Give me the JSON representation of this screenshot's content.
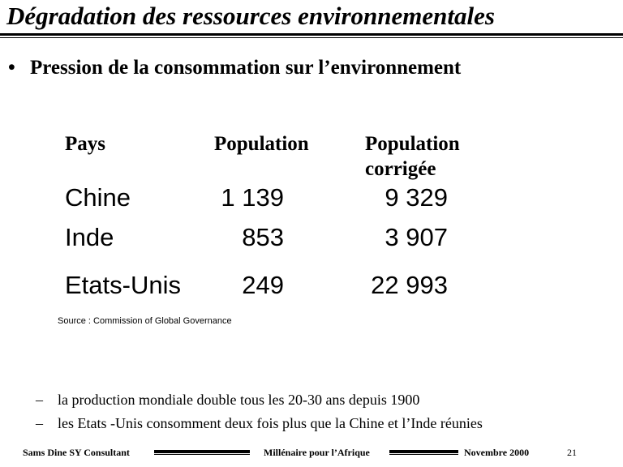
{
  "title": "Dégradation des ressources environnementales",
  "bullet": {
    "marker": "•",
    "text": "Pression de la consommation sur l’environnement"
  },
  "table": {
    "headers": [
      "Pays",
      "Population",
      "Population corrigée"
    ],
    "header3_line1": "Population",
    "header3_line2": "corrigée",
    "rows": [
      {
        "pays": "Chine",
        "population": "1 139",
        "corrigee": "9 329"
      },
      {
        "pays": "Inde",
        "population": "853",
        "corrigee": "3 907"
      },
      {
        "pays": "Etats-Unis",
        "population": "249",
        "corrigee": "22 993"
      }
    ]
  },
  "source": "Source : Commission of Global Governance",
  "subpoints": [
    {
      "marker": "–",
      "text": "la production mondiale double tous les 20-30 ans depuis 1900"
    },
    {
      "marker": "–",
      "text": "les Etats -Unis consomment deux fois plus que la Chine et l’Inde réunies"
    }
  ],
  "footer": {
    "author": "Sams Dine SY Consultant",
    "center": "Millénaire pour l’Afrique",
    "date": "Novembre 2000",
    "page": "21"
  }
}
